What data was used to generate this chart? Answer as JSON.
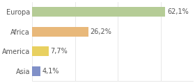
{
  "categories": [
    "Europa",
    "Africa",
    "America",
    "Asia"
  ],
  "values": [
    62.1,
    26.2,
    7.7,
    4.1
  ],
  "labels": [
    "62,1%",
    "26,2%",
    "7,7%",
    "4,1%"
  ],
  "bar_colors": [
    "#b5cc96",
    "#e8b87a",
    "#e8d060",
    "#8090c8"
  ],
  "background_color": "#ffffff",
  "plot_bg_color": "#ffffff",
  "xlim": [
    0,
    75
  ],
  "bar_height": 0.5,
  "label_fontsize": 7,
  "tick_fontsize": 7,
  "grid_color": "#dddddd",
  "text_color": "#555555"
}
